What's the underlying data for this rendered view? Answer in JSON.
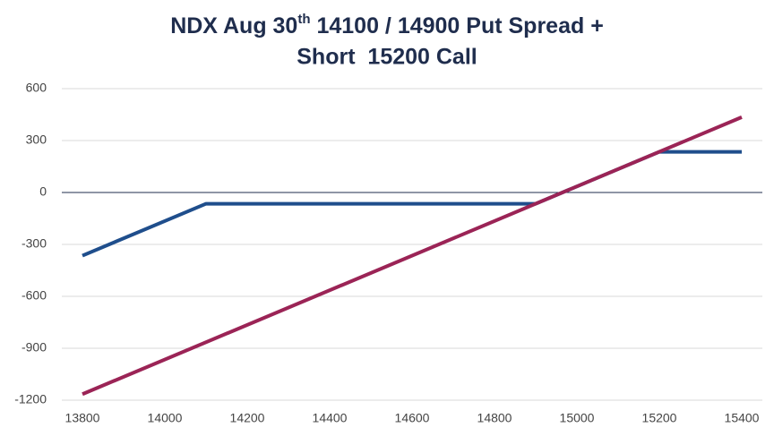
{
  "chart_data": {
    "type": "line",
    "title": [
      "NDX Aug 30",
      "th",
      " 14100 / 14900 Put Spread +",
      "Short  15200 Call"
    ],
    "series": [
      {
        "color": "#1f4e8c",
        "x": [
          13800,
          14100,
          14900,
          15200,
          15400
        ],
        "values": [
          -365,
          -65,
          -65,
          235,
          235
        ]
      },
      {
        "color": "#9b2456",
        "x": [
          13800,
          15400
        ],
        "values": [
          -1165,
          435
        ]
      }
    ],
    "xlim": [
      13750,
      15450
    ],
    "xticks": [
      13800,
      14000,
      14200,
      14400,
      14600,
      14800,
      15000,
      15200,
      15400
    ],
    "ylim": [
      -1200,
      600
    ],
    "yticks": [
      -1200,
      -900,
      -600,
      -300,
      0,
      300,
      600
    ],
    "grid": true,
    "zero_line_color": "#1f2d4d"
  }
}
